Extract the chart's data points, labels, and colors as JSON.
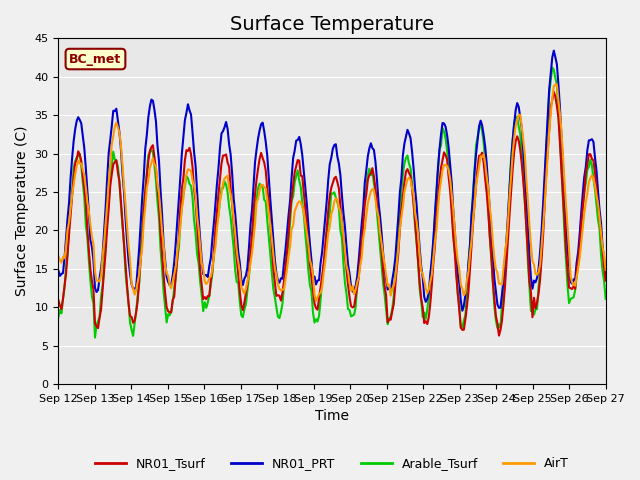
{
  "title": "Surface Temperature",
  "xlabel": "Time",
  "ylabel": "Surface Temperature (C)",
  "ylim": [
    0,
    45
  ],
  "yticks": [
    0,
    5,
    10,
    15,
    20,
    25,
    30,
    35,
    40,
    45
  ],
  "annotation": "BC_met",
  "plot_bg_color": "#e8e8e8",
  "fig_bg_color": "#f0f0f0",
  "line_colors": {
    "NR01_Tsurf": "#cc0000",
    "NR01_PRT": "#0000cc",
    "Arable_Tsurf": "#00cc00",
    "AirT": "#ff9900"
  },
  "line_widths": {
    "NR01_Tsurf": 1.5,
    "NR01_PRT": 1.5,
    "Arable_Tsurf": 1.5,
    "AirT": 1.5
  },
  "xtick_labels": [
    "Sep 12",
    "Sep 13",
    "Sep 14",
    "Sep 15",
    "Sep 16",
    "Sep 17",
    "Sep 18",
    "Sep 19",
    "Sep 20",
    "Sep 21",
    "Sep 22",
    "Sep 23",
    "Sep 24",
    "Sep 25",
    "Sep 26",
    "Sep 27"
  ],
  "xtick_positions": [
    0,
    1,
    2,
    3,
    4,
    5,
    6,
    7,
    8,
    9,
    10,
    11,
    12,
    13,
    14,
    15
  ],
  "n_days": 15,
  "pts_per_day": 24,
  "title_fontsize": 14,
  "axis_label_fontsize": 10,
  "tick_fontsize": 8,
  "legend_fontsize": 9
}
